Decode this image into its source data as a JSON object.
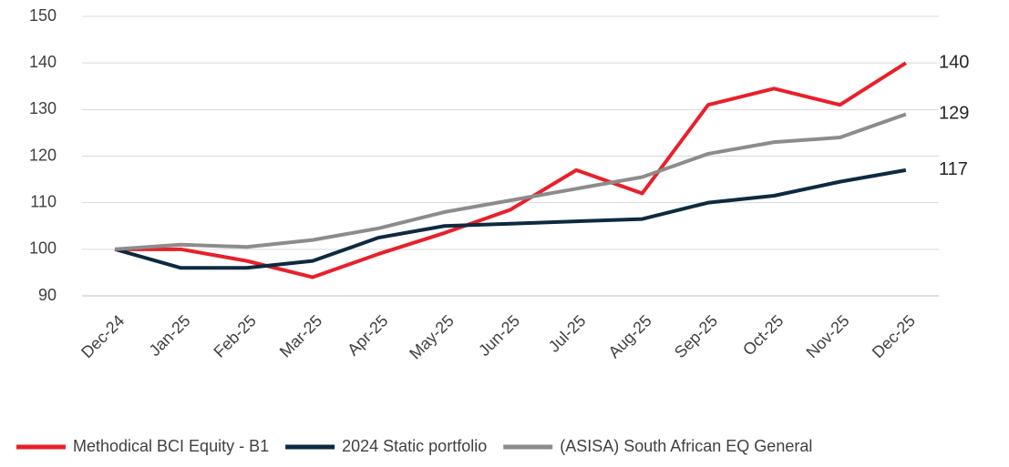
{
  "chart_data": {
    "type": "line",
    "categories": [
      "Dec-24",
      "Jan-25",
      "Feb-25",
      "Mar-25",
      "Apr-25",
      "May-25",
      "Jun-25",
      "Jul-25",
      "Aug-25",
      "Sep-25",
      "Oct-25",
      "Nov-25",
      "Dec-25"
    ],
    "series": [
      {
        "name": "Methodical BCI Equity - B1",
        "color": "#e8202a",
        "values": [
          100,
          100,
          97.5,
          94,
          99,
          103.5,
          108.5,
          117,
          112,
          131,
          134.5,
          131,
          140
        ]
      },
      {
        "name": "2024 Static portfolio",
        "color": "#0d2a40",
        "values": [
          100,
          96,
          96,
          97.5,
          102.5,
          105,
          105.5,
          106,
          106.5,
          110,
          111.5,
          114.5,
          117
        ]
      },
      {
        "name": "(ASISA) South African EQ General",
        "color": "#8c8c8c",
        "values": [
          100,
          101,
          100.5,
          102,
          104.5,
          108,
          110.5,
          113,
          115.5,
          120.5,
          123,
          124,
          129
        ]
      }
    ],
    "ylim": [
      90,
      150
    ],
    "yticks": [
      90,
      100,
      110,
      120,
      130,
      140,
      150
    ],
    "grid": true,
    "legend": "bottom"
  }
}
